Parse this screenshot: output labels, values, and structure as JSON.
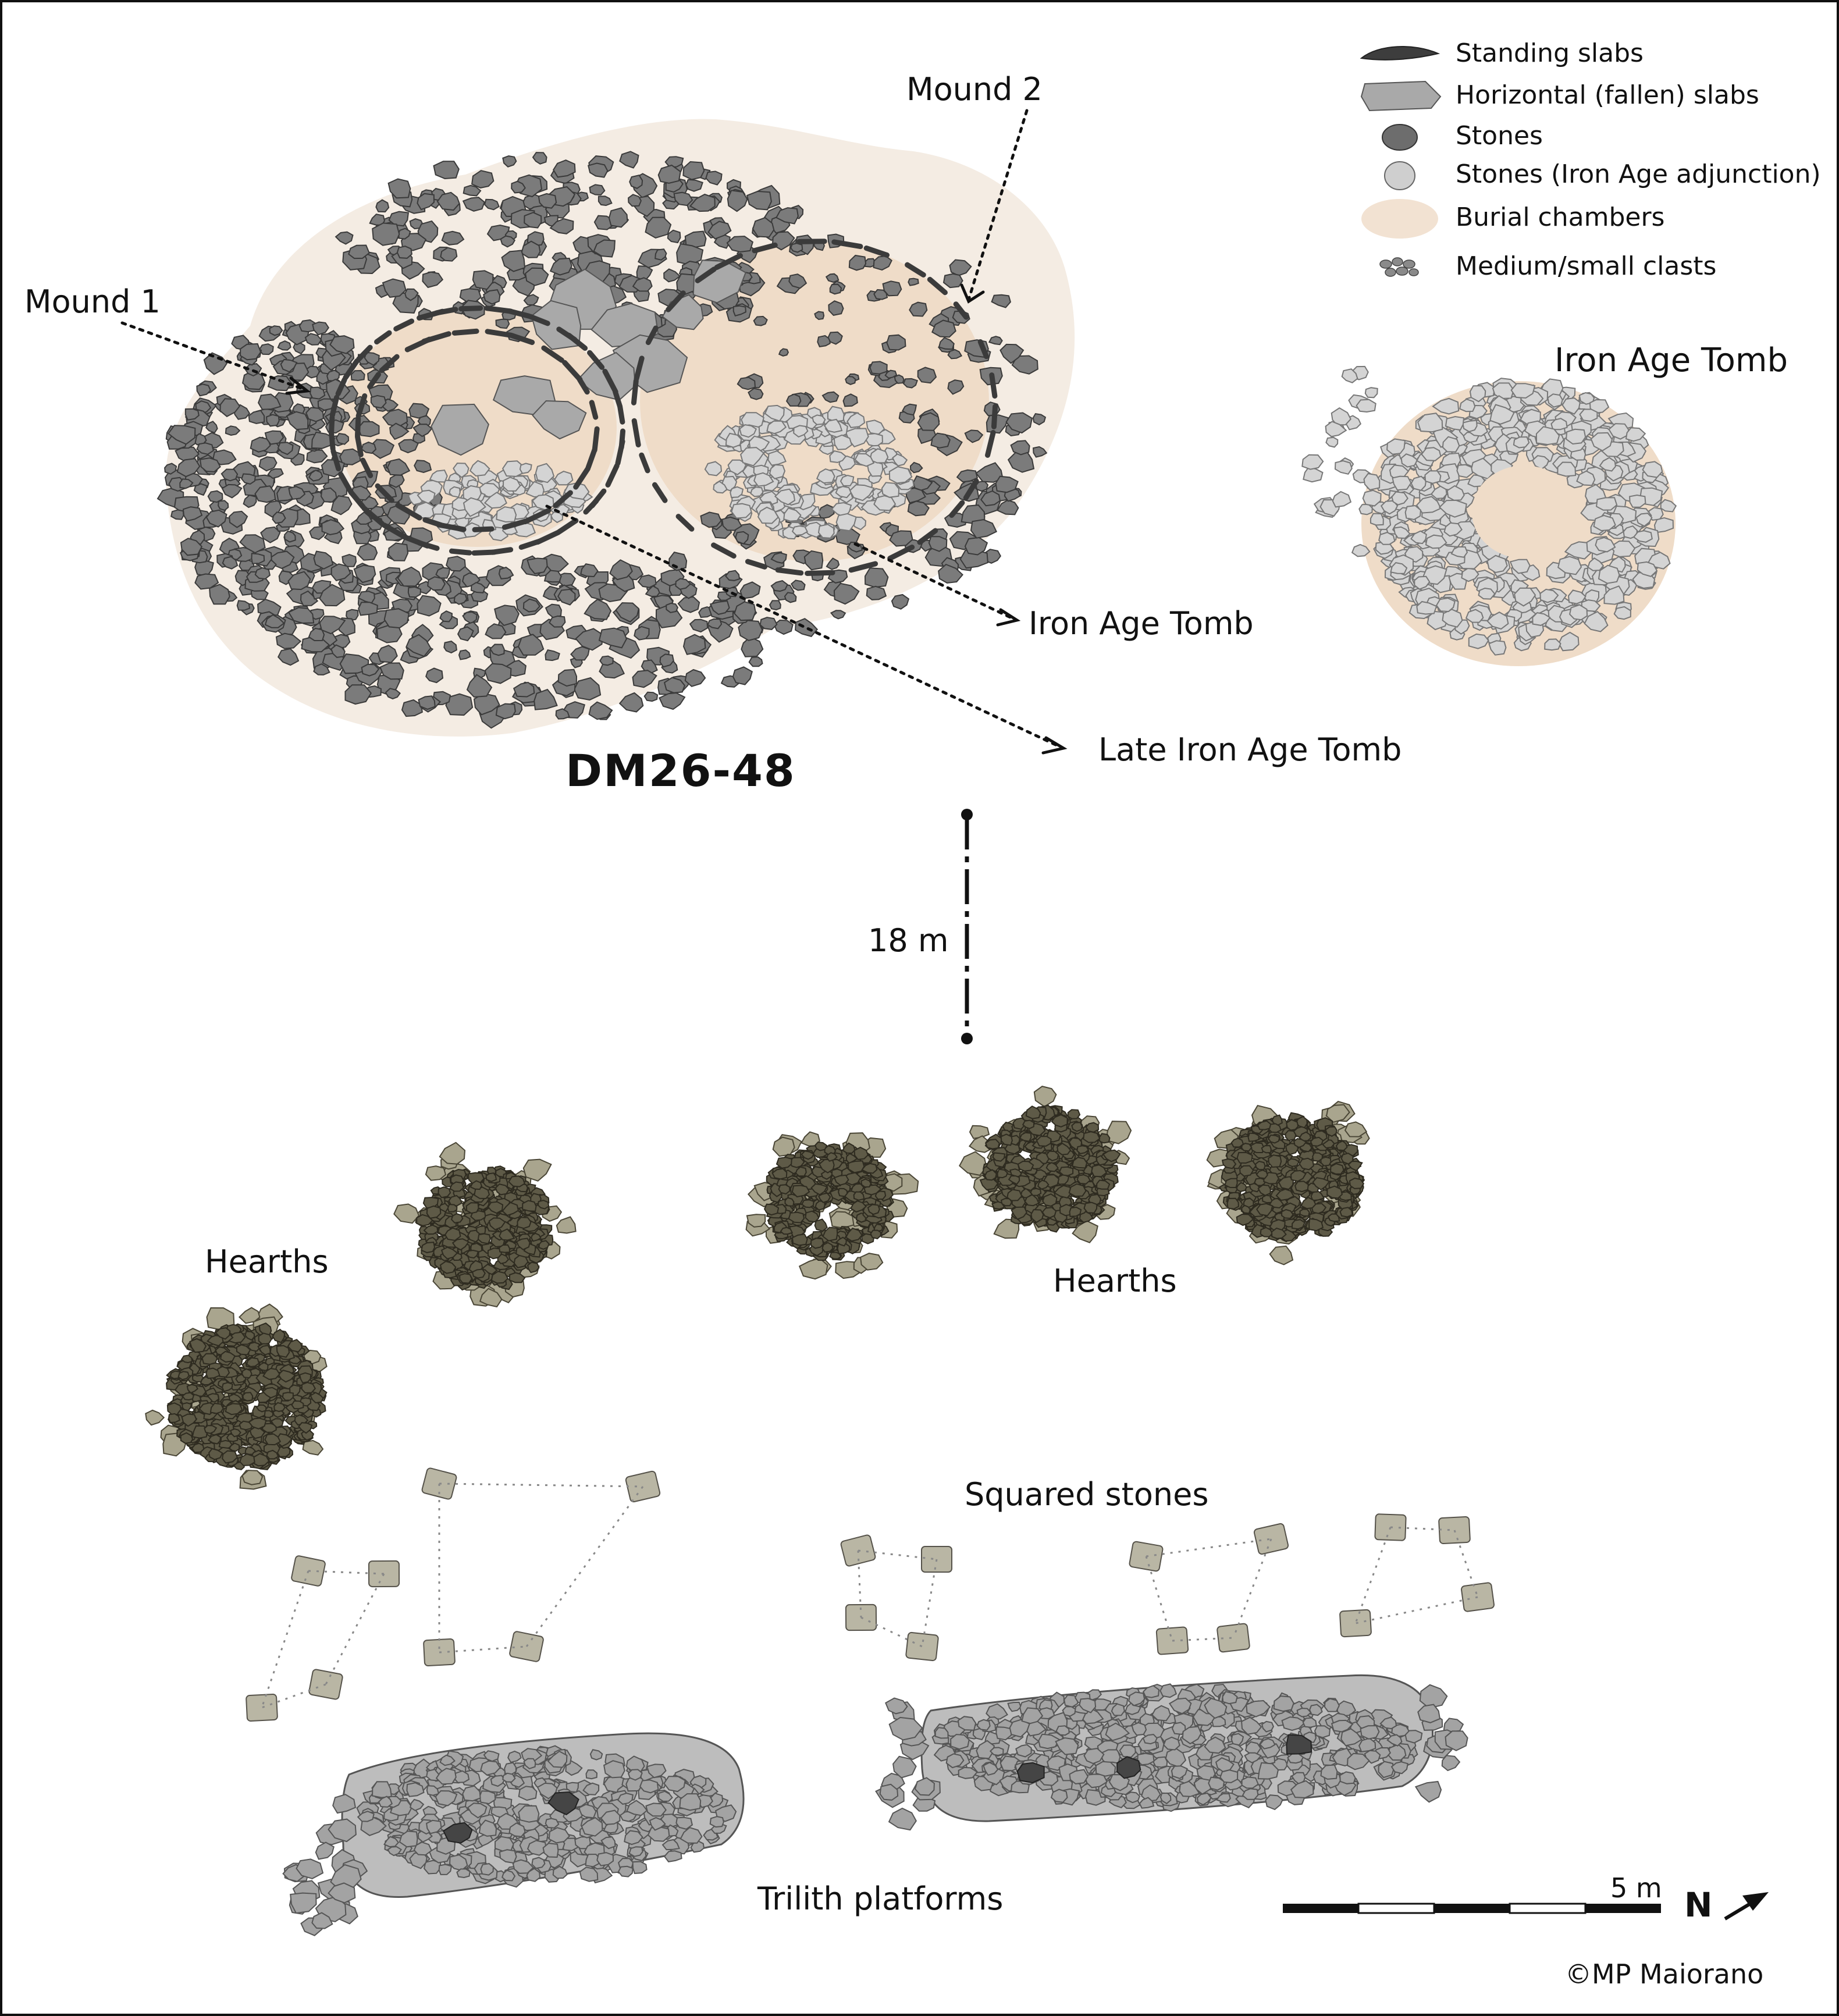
{
  "site": {
    "name": "DM26-48"
  },
  "labels": {
    "mound1": "Mound 1",
    "mound2": "Mound 2",
    "iron_age_tomb_pointer": "Iron Age Tomb",
    "late_iron_age_tomb": "Late Iron Age Tomb",
    "iron_age_tomb_separate": "Iron Age Tomb",
    "distance": "18 m",
    "hearths_left": "Hearths",
    "hearths_center": "Hearths",
    "squared_stones": "Squared stones",
    "trilith_platforms": "Trilith platforms"
  },
  "legend": [
    {
      "label": "Standing slabs",
      "icon": "standing-slab-icon",
      "color": "#3d3d3d"
    },
    {
      "label": "Horizontal (fallen) slabs",
      "icon": "fallen-slab-icon",
      "color": "#a9a9a9"
    },
    {
      "label": "Stones",
      "icon": "stone-icon",
      "color": "#6d6d6d"
    },
    {
      "label": "Stones (Iron Age adjunction)",
      "icon": "iron-age-stone-icon",
      "color": "#cfcfcf"
    },
    {
      "label": "Burial chambers",
      "icon": "burial-chamber-icon",
      "color": "#f2e2d2"
    },
    {
      "label": "Medium/small clasts",
      "icon": "clasts-icon",
      "color": "#8a8a8a"
    }
  ],
  "scale_bar": {
    "label": "5 m",
    "north": "N"
  },
  "colors": {
    "mound_fill": "#f4ece3",
    "chamber_fill": "#efdcc8",
    "stone_dark": "#7b7b7b",
    "stone_light": "#d4d4d4",
    "hearth_stone": "#5e5a47",
    "hearth_ring": "#a9a58e",
    "squared_stone": "#b9b6a4",
    "platform_stone": "#a3a3a3"
  },
  "credit": "©MP Maiorano"
}
